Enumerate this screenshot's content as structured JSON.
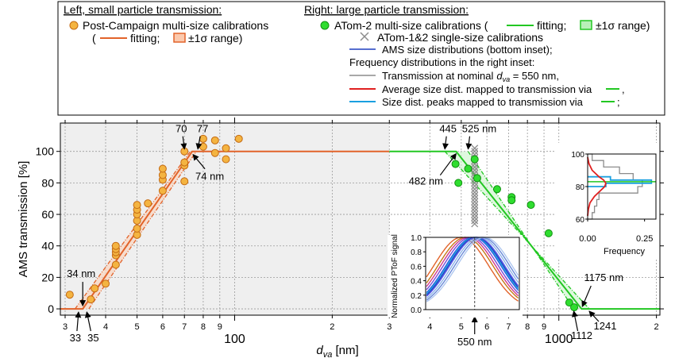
{
  "chart_data": {
    "type": "scatter",
    "xlabel": "d",
    "xlabel_sub": "va",
    "xlabel_unit": " [nm]",
    "ylabel": "AMS transmission [%]",
    "x_scale": "log",
    "xlim": [
      29,
      2050
    ],
    "ylim": [
      -4,
      118
    ],
    "y_ticks": [
      0,
      20,
      40,
      60,
      80,
      100
    ],
    "x_major_ticks": [
      {
        "v": 100,
        "label": "100"
      },
      {
        "v": 1000,
        "label": "1000"
      }
    ],
    "x_minor_ticks": [
      {
        "v": 30,
        "label": "3"
      },
      {
        "v": 40,
        "label": "4"
      },
      {
        "v": 50,
        "label": "5"
      },
      {
        "v": 60,
        "label": "6"
      },
      {
        "v": 70,
        "label": "7"
      },
      {
        "v": 80,
        "label": "8"
      },
      {
        "v": 90,
        "label": "9"
      },
      {
        "v": 200,
        "label": "2"
      },
      {
        "v": 300,
        "label": "3"
      },
      {
        "v": 400,
        "label": "4"
      },
      {
        "v": 500,
        "label": "5"
      },
      {
        "v": 600,
        "label": "6"
      },
      {
        "v": 700,
        "label": "7"
      },
      {
        "v": 800,
        "label": "8"
      },
      {
        "v": 900,
        "label": "9"
      },
      {
        "v": 2000,
        "label": "2"
      }
    ],
    "grid": true,
    "shaded_region_x": [
      29,
      300
    ],
    "legend_left": {
      "heading": "Left, small particle transmission:",
      "markers_label": "Post-Campaign multi-size calibrations",
      "paren_open": "(",
      "fit_label": "fitting;",
      "range_label": "±1σ range)"
    },
    "legend_right": {
      "heading": "Right: large particle transmission:",
      "markers_label": "ATom-2 multi-size calibrations (",
      "fit_label": "fitting;",
      "range_label": "±1σ range)",
      "cross_label": "ATom-1&2 single-size calibrations",
      "ams_label": "AMS size distributions (bottom inset);",
      "freq_heading": "Frequency distributions in the right inset:",
      "nominal_label": "Transmission at nominal",
      "nominal_var": "d",
      "nominal_sub": "va",
      "nominal_value": " = 550 nm,",
      "avg_label": "Average size dist. mapped to transmission via",
      "avg_end": ",",
      "peak_label": "Size dist. peaks mapped to transmission via",
      "peak_end": ";"
    },
    "colors": {
      "small": "#e2632a",
      "small_fill": "#f4b441",
      "large": "#22c722",
      "large_marker": "#2fdd2f",
      "cross": "#8c8c8c",
      "ams_blue": "#1f3fbf",
      "red": "#e02020",
      "cyan": "#1aa0e0",
      "gray": "#8c8c8c",
      "shade": "#efefef"
    },
    "series": [
      {
        "name": "Post-Campaign multi-size calibrations",
        "marker": "circle-orange",
        "points": [
          [
            31,
            9
          ],
          [
            36,
            6
          ],
          [
            37,
            13
          ],
          [
            40,
            16
          ],
          [
            43,
            28
          ],
          [
            43,
            34
          ],
          [
            43,
            36
          ],
          [
            43,
            38
          ],
          [
            43,
            40
          ],
          [
            50,
            47
          ],
          [
            50,
            51
          ],
          [
            50,
            56
          ],
          [
            50,
            60
          ],
          [
            50,
            63
          ],
          [
            50,
            66
          ],
          [
            54,
            67
          ],
          [
            60,
            75
          ],
          [
            60,
            82
          ],
          [
            60,
            85
          ],
          [
            60,
            89
          ],
          [
            70,
            81
          ],
          [
            70,
            91
          ],
          [
            70,
            93
          ],
          [
            70,
            100
          ],
          [
            80,
            103
          ],
          [
            80,
            108
          ],
          [
            87,
            99
          ],
          [
            87,
            107
          ],
          [
            94,
            95
          ],
          [
            94,
            102
          ],
          [
            103,
            108
          ]
        ]
      },
      {
        "name": "ATom-2 multi-size calibrations",
        "marker": "circle-green",
        "points": [
          [
            480,
            92
          ],
          [
            490,
            80
          ],
          [
            525,
            89
          ],
          [
            550,
            95
          ],
          [
            560,
            83
          ],
          [
            645,
            76
          ],
          [
            715,
            71
          ],
          [
            715,
            69
          ],
          [
            820,
            66
          ],
          [
            930,
            48
          ],
          [
            1077,
            4
          ],
          [
            1115,
            1
          ]
        ]
      }
    ],
    "single_size_x": 550,
    "single_size_y": [
      54,
      56,
      58,
      60,
      62,
      64,
      66,
      68,
      70,
      72,
      74,
      76,
      78,
      80,
      82,
      84,
      86,
      88,
      90,
      92,
      94,
      96,
      98,
      100,
      102
    ],
    "small_fit": {
      "x": [
        33,
        34,
        74,
        77
      ],
      "y": [
        0,
        0,
        100,
        100
      ],
      "upper_x": [
        32.2,
        73
      ],
      "lower_x": [
        35.5,
        76.2
      ]
    },
    "large_fit": {
      "x": [
        300,
        482,
        1175,
        2050
      ],
      "y": [
        100,
        100,
        0,
        0
      ],
      "upper_x": [
        445,
        1241
      ],
      "lower_x": [
        525,
        1112
      ]
    },
    "annotations": [
      {
        "text": "34 nm",
        "x": 34,
        "y": 0
      },
      {
        "text": "33",
        "x": 33,
        "y": 0
      },
      {
        "text": "35",
        "x": 35,
        "y": 0
      },
      {
        "text": "70",
        "x": 70,
        "y": 100
      },
      {
        "text": "77",
        "x": 77,
        "y": 100
      },
      {
        "text": "74 nm",
        "x": 74,
        "y": 100
      },
      {
        "text": "445",
        "x": 445,
        "y": 100
      },
      {
        "text": "525 nm",
        "x": 525,
        "y": 100
      },
      {
        "text": "482 nm",
        "x": 482,
        "y": 100
      },
      {
        "text": "1175 nm",
        "x": 1175,
        "y": 0
      },
      {
        "text": "1241",
        "x": 1241,
        "y": 0
      },
      {
        "text": "1112",
        "x": 1112,
        "y": 0
      },
      {
        "text": "550 nm",
        "x": 550,
        "y": 0
      }
    ],
    "inset_bottom": {
      "ylabel": "Normalized PToF signal",
      "ylim": [
        0,
        1
      ],
      "y_ticks": [
        0,
        0.2,
        0.4,
        0.6,
        0.8,
        1.0
      ],
      "y_tick_labels": [
        "0.0",
        "0.2",
        "0.4",
        "0.6",
        "0.8",
        "1.0"
      ],
      "curve_centers": [
        500,
        515,
        525,
        535,
        545,
        550,
        555,
        560,
        570,
        580,
        590
      ],
      "curve_colors": [
        "#e2632a",
        "#c47a1a",
        "#d23a8a",
        "#7a4ad8",
        "#2a5ee0",
        "#1aa0e0",
        "#1f3fbf",
        "#5a5ae8",
        "#8fb4e8",
        "#6a8ad8",
        "#b0c8f0"
      ]
    },
    "inset_right": {
      "xlabel": "Frequency",
      "xlim": [
        0,
        0.3
      ],
      "ylim": [
        60,
        100
      ],
      "y_ticks": [
        60,
        80,
        100
      ],
      "x_ticks": [
        0.0,
        0.25
      ],
      "x_tick_labels": [
        "0.00",
        "0.25"
      ],
      "gray_hist": [
        [
          60,
          64,
          0.02
        ],
        [
          64,
          68,
          0.03
        ],
        [
          68,
          72,
          0.04
        ],
        [
          72,
          76,
          0.05
        ],
        [
          76,
          80,
          0.22
        ],
        [
          80,
          84,
          0.24
        ],
        [
          84,
          88,
          0.2
        ],
        [
          88,
          92,
          0.14
        ],
        [
          92,
          96,
          0.07
        ],
        [
          96,
          100,
          0.02
        ]
      ],
      "cyan_hist": [
        [
          80,
          82,
          0.08
        ],
        [
          82,
          84,
          0.28
        ],
        [
          84,
          86,
          0.1
        ]
      ],
      "red_curve": [
        [
          62,
          0.0
        ],
        [
          66,
          0.003
        ],
        [
          70,
          0.01
        ],
        [
          74,
          0.03
        ],
        [
          78,
          0.06
        ],
        [
          80,
          0.075
        ],
        [
          82,
          0.08
        ],
        [
          84,
          0.07
        ],
        [
          86,
          0.05
        ],
        [
          90,
          0.02
        ],
        [
          94,
          0.006
        ],
        [
          98,
          0.0
        ]
      ]
    }
  }
}
